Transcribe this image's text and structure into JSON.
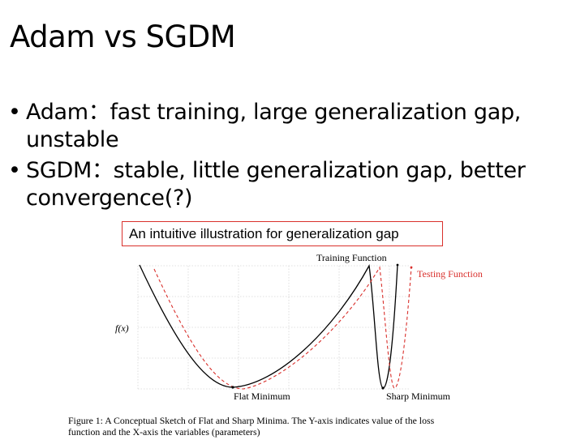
{
  "slide": {
    "title": "Adam vs SGDM",
    "bullets": [
      "Adam：fast training, large generalization gap, unstable",
      "SGDM：stable, little generalization gap, better convergence(?)"
    ],
    "illustration_label": "An intuitive illustration for generalization gap"
  },
  "figure": {
    "y_axis_label": "f(x)",
    "legend_training": "Training Function",
    "legend_testing": "Testing Function",
    "flat_label": "Flat Minimum",
    "sharp_label": "Sharp Minimum",
    "caption_line1": "Figure 1: A Conceptual Sketch of Flat and Sharp Minima. The Y-axis indicates value of the loss",
    "caption_line2": "function and the X-axis the variables (parameters)",
    "colors": {
      "training": "#000000",
      "testing": "#d9302c",
      "grid": "#d6d6d6"
    }
  }
}
